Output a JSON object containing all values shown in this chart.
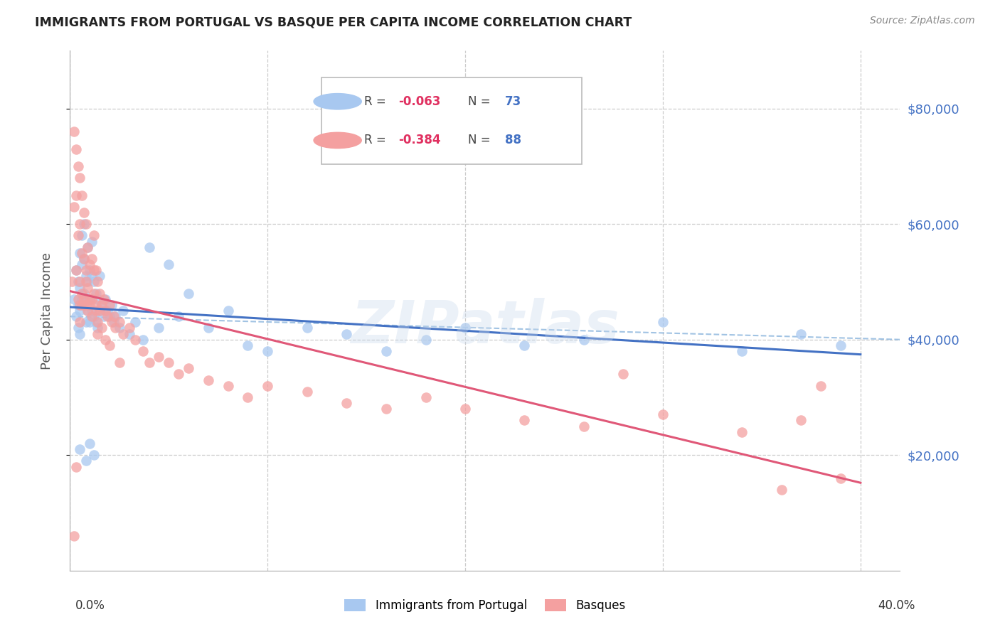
{
  "title": "IMMIGRANTS FROM PORTUGAL VS BASQUE PER CAPITA INCOME CORRELATION CHART",
  "source": "Source: ZipAtlas.com",
  "ylabel": "Per Capita Income",
  "ytick_labels": [
    "$20,000",
    "$40,000",
    "$60,000",
    "$80,000"
  ],
  "ytick_values": [
    20000,
    40000,
    60000,
    80000
  ],
  "ylim": [
    0,
    90000
  ],
  "xlim": [
    0.0,
    0.42
  ],
  "color_blue": "#A8C8F0",
  "color_pink": "#F4A0A0",
  "trendline_blue": "#4472C4",
  "trendline_pink": "#E05878",
  "dashed_blue": "#7aaad8",
  "watermark": "ZIPatlas",
  "blue_R": "-0.063",
  "blue_N": "73",
  "pink_R": "-0.384",
  "pink_N": "88",
  "blue_x": [
    0.002,
    0.003,
    0.003,
    0.004,
    0.004,
    0.004,
    0.005,
    0.005,
    0.005,
    0.005,
    0.006,
    0.006,
    0.006,
    0.007,
    0.007,
    0.007,
    0.008,
    0.008,
    0.008,
    0.009,
    0.009,
    0.009,
    0.01,
    0.01,
    0.01,
    0.011,
    0.011,
    0.011,
    0.012,
    0.012,
    0.013,
    0.013,
    0.014,
    0.014,
    0.015,
    0.015,
    0.016,
    0.017,
    0.018,
    0.019,
    0.02,
    0.021,
    0.022,
    0.023,
    0.025,
    0.027,
    0.03,
    0.033,
    0.037,
    0.04,
    0.045,
    0.05,
    0.055,
    0.06,
    0.07,
    0.08,
    0.09,
    0.1,
    0.12,
    0.14,
    0.16,
    0.18,
    0.2,
    0.23,
    0.26,
    0.3,
    0.34,
    0.37,
    0.39,
    0.005,
    0.008,
    0.01,
    0.012
  ],
  "blue_y": [
    47000,
    52000,
    44000,
    50000,
    46000,
    42000,
    55000,
    49000,
    45000,
    41000,
    58000,
    53000,
    47000,
    60000,
    54000,
    48000,
    51000,
    47000,
    43000,
    56000,
    50000,
    45000,
    52000,
    47000,
    43000,
    57000,
    51000,
    45000,
    50000,
    44000,
    48000,
    43000,
    47000,
    42000,
    51000,
    45000,
    46000,
    44000,
    47000,
    45000,
    44000,
    46000,
    43000,
    44000,
    42000,
    45000,
    41000,
    43000,
    40000,
    56000,
    42000,
    53000,
    44000,
    48000,
    42000,
    45000,
    39000,
    38000,
    42000,
    41000,
    38000,
    40000,
    42000,
    39000,
    40000,
    43000,
    38000,
    41000,
    39000,
    21000,
    19000,
    22000,
    20000
  ],
  "pink_x": [
    0.001,
    0.002,
    0.002,
    0.003,
    0.003,
    0.003,
    0.004,
    0.004,
    0.004,
    0.005,
    0.005,
    0.005,
    0.005,
    0.006,
    0.006,
    0.006,
    0.007,
    0.007,
    0.007,
    0.008,
    0.008,
    0.008,
    0.009,
    0.009,
    0.01,
    0.01,
    0.011,
    0.011,
    0.012,
    0.012,
    0.013,
    0.013,
    0.014,
    0.014,
    0.015,
    0.016,
    0.017,
    0.018,
    0.019,
    0.02,
    0.021,
    0.022,
    0.023,
    0.025,
    0.027,
    0.03,
    0.033,
    0.037,
    0.04,
    0.045,
    0.05,
    0.055,
    0.06,
    0.07,
    0.08,
    0.09,
    0.1,
    0.12,
    0.14,
    0.16,
    0.18,
    0.2,
    0.23,
    0.26,
    0.3,
    0.34,
    0.37,
    0.005,
    0.006,
    0.007,
    0.008,
    0.009,
    0.01,
    0.011,
    0.012,
    0.013,
    0.014,
    0.015,
    0.016,
    0.018,
    0.02,
    0.025,
    0.36,
    0.39,
    0.38,
    0.28,
    0.002,
    0.003
  ],
  "pink_y": [
    50000,
    76000,
    63000,
    73000,
    65000,
    52000,
    70000,
    58000,
    47000,
    68000,
    60000,
    50000,
    43000,
    65000,
    55000,
    46000,
    62000,
    54000,
    46000,
    60000,
    52000,
    46000,
    56000,
    49000,
    53000,
    46000,
    54000,
    47000,
    58000,
    48000,
    52000,
    45000,
    50000,
    43000,
    48000,
    46000,
    47000,
    45000,
    44000,
    46000,
    43000,
    44000,
    42000,
    43000,
    41000,
    42000,
    40000,
    38000,
    36000,
    37000,
    36000,
    34000,
    35000,
    33000,
    32000,
    30000,
    32000,
    31000,
    29000,
    28000,
    30000,
    28000,
    26000,
    25000,
    27000,
    24000,
    26000,
    46000,
    48000,
    47000,
    50000,
    45000,
    47000,
    44000,
    52000,
    46000,
    41000,
    45000,
    42000,
    40000,
    39000,
    36000,
    14000,
    16000,
    32000,
    34000,
    6000,
    18000
  ]
}
